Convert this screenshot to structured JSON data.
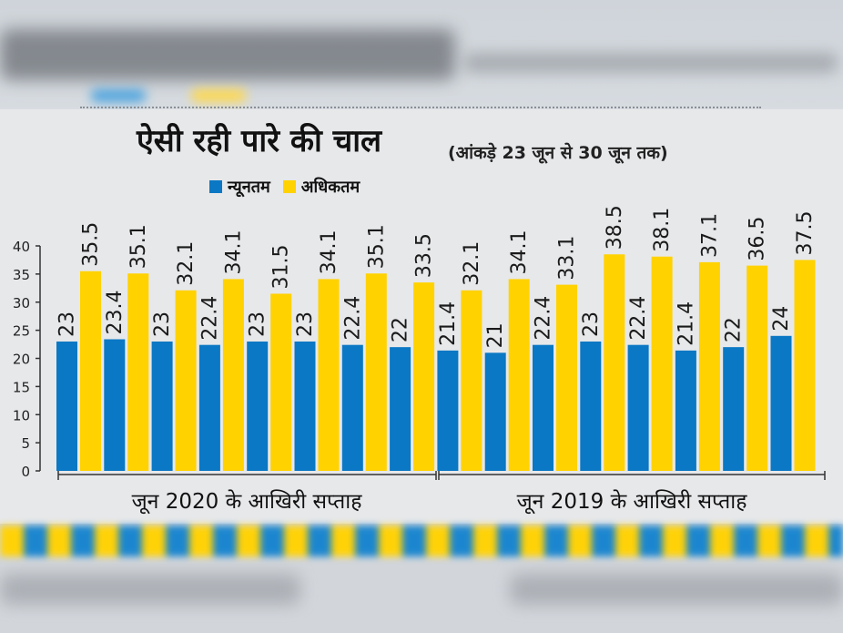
{
  "colors": {
    "min": "#0a78c4",
    "max": "#ffd200",
    "axis": "#333333"
  },
  "chart_data": {
    "type": "bar",
    "title": "ऐसी रही पारे की चाल",
    "subtitle": "(आंकड़े 23 जून से 30 जून तक)",
    "ylim": [
      0,
      40
    ],
    "yticks": [
      0,
      5,
      10,
      15,
      20,
      25,
      30,
      35,
      40
    ],
    "grid": false,
    "legend_position": "top",
    "groups": [
      "जून 2020 के आखिरी सप्ताह",
      "जून 2019 के आखिरी सप्ताह"
    ],
    "series": [
      {
        "name": "न्यूनतम",
        "values": [
          23,
          23.4,
          23,
          22.4,
          23,
          23,
          22.4,
          22,
          21.4,
          21,
          22.4,
          23,
          22.4,
          21.4,
          22,
          24
        ]
      },
      {
        "name": "अधिकतम",
        "values": [
          35.5,
          35.1,
          32.1,
          34.1,
          31.5,
          34.1,
          35.1,
          33.5,
          32.1,
          34.1,
          33.1,
          38.5,
          38.1,
          37.1,
          36.5,
          37.5
        ]
      }
    ],
    "labels": {
      "min": [
        "23",
        "23.4",
        "23",
        "22.4",
        "23",
        "23",
        "22.4",
        "22",
        "21.4",
        "21",
        "22.4",
        "23",
        "22.4",
        "21.4",
        "22",
        "24"
      ],
      "max": [
        "35.5",
        "35.1",
        "32.1",
        "34.1",
        "31.5",
        "34.1",
        "35.1",
        "33.5",
        "32.1",
        "34.1",
        "33.1",
        "38.5",
        "38.1",
        "37.1",
        "36.5",
        "37.5"
      ]
    }
  }
}
